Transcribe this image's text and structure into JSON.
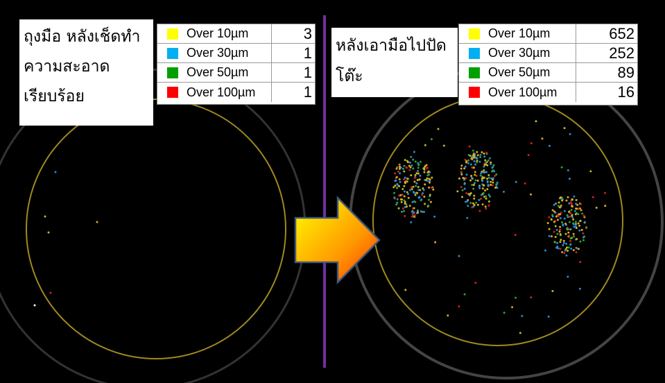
{
  "panels": [
    {
      "caption": [
        "ถุงมือ หลังเช็ดทำ",
        "ความสะอาด",
        "เรียบร้อย"
      ],
      "table": {
        "rows": [
          {
            "color": "#ffff00",
            "label": "Over 10µm",
            "count": 3
          },
          {
            "color": "#00b0f0",
            "label": "Over 30µm",
            "count": 1
          },
          {
            "color": "#00a000",
            "label": "Over 50µm",
            "count": 1
          },
          {
            "color": "#ff0000",
            "label": "Over 100µm",
            "count": 1
          }
        ]
      }
    },
    {
      "caption": [
        "หลังเอามือไปปัด",
        "โต๊ะ"
      ],
      "table": {
        "rows": [
          {
            "color": "#ffff00",
            "label": "Over 10µm",
            "count": 652
          },
          {
            "color": "#00b0f0",
            "label": "Over 30µm",
            "count": 252
          },
          {
            "color": "#00a000",
            "label": "Over 50µm",
            "count": 89
          },
          {
            "color": "#ff0000",
            "label": "Over 100µm",
            "count": 16
          }
        ]
      }
    }
  ]
}
